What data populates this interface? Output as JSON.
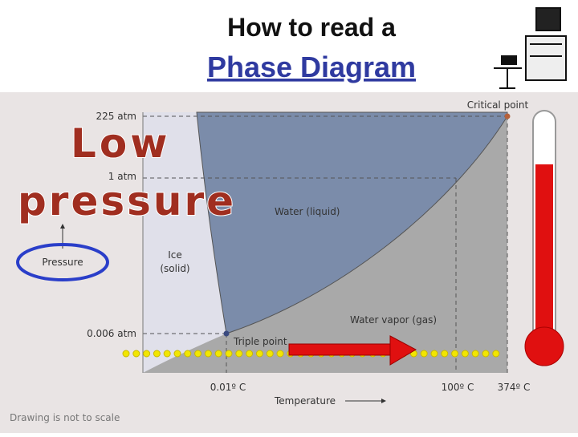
{
  "header": {
    "line1": "How to read a",
    "line2": "Phase Diagram"
  },
  "diagram": {
    "pressure_labels": [
      "225 atm",
      "1 atm",
      "0.006 atm"
    ],
    "temperature_labels": [
      "0.01º C",
      "100º C",
      "374º C"
    ],
    "critical_point": "Critical point",
    "triple_point": "Triple point",
    "regions": {
      "liquid": "Water (liquid)",
      "solid_1": "Ice",
      "solid_2": "(solid)",
      "gas": "Water vapor (gas)"
    },
    "y_axis": "Pressure",
    "x_axis": "Temperature",
    "note": "Drawing is not to scale"
  },
  "overlay": {
    "word1": "Low",
    "word2": "pressure"
  }
}
